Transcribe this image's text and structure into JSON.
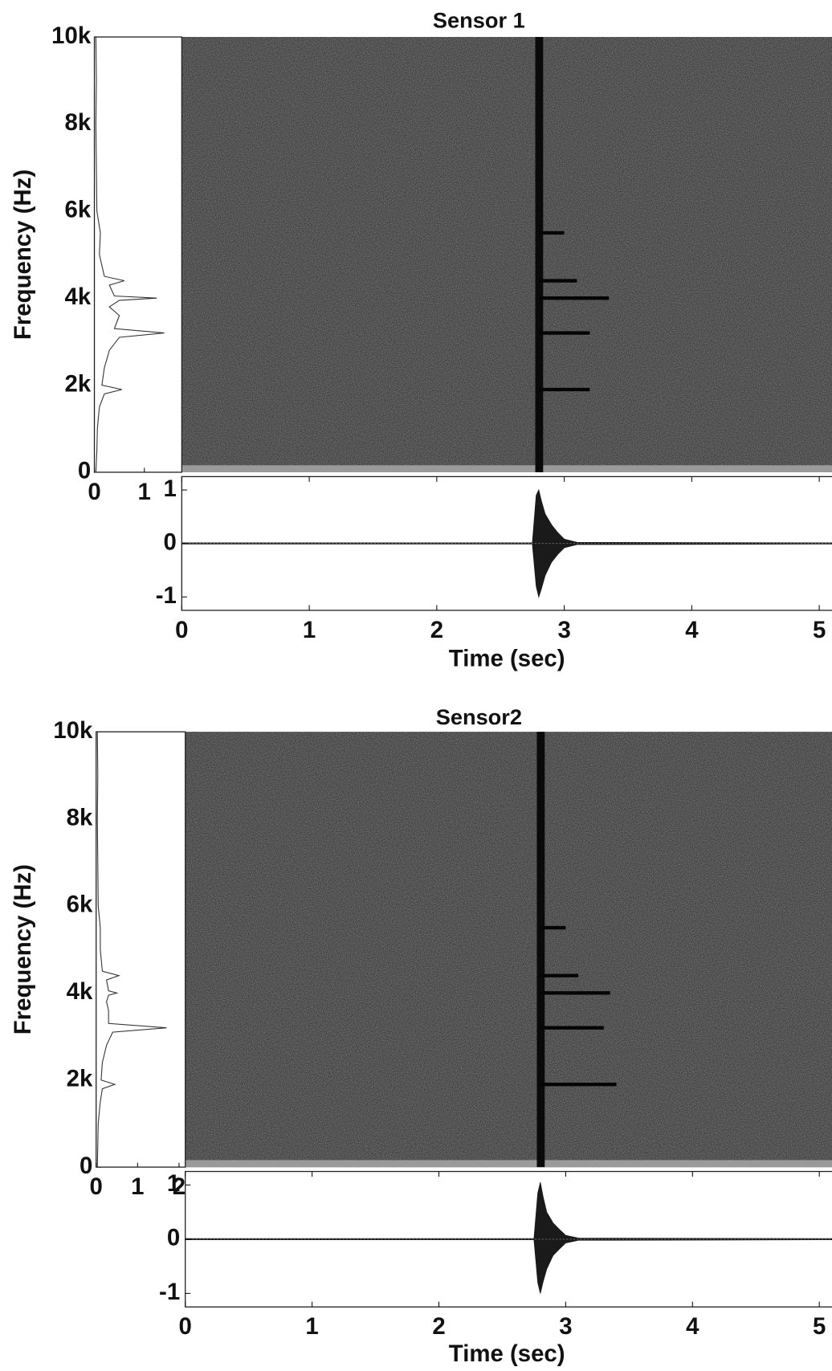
{
  "chart_data": [
    {
      "type": "spectrogram",
      "title": "Sensor 1",
      "ylabel": "Frequency (Hz)",
      "xlim": [
        0,
        5.1
      ],
      "ylim": [
        0,
        10000
      ],
      "yticks": [
        {
          "value": 10000,
          "label": "10k"
        },
        {
          "value": 8000,
          "label": "8k"
        },
        {
          "value": 6000,
          "label": "6k"
        },
        {
          "value": 4000,
          "label": "4k"
        },
        {
          "value": 2000,
          "label": "2k"
        },
        0
      ],
      "onset": 2.8,
      "harmonics": [
        {
          "frequency": 1900,
          "end": 3.2
        },
        {
          "frequency": 3200,
          "end": 3.2
        },
        {
          "frequency": 4000,
          "end": 3.35
        },
        {
          "frequency": 4400,
          "end": 3.1
        },
        {
          "frequency": 5500,
          "end": 3.0
        }
      ]
    },
    {
      "type": "spectrum",
      "xlim": [
        0,
        1.75
      ],
      "xticks": [
        0,
        1
      ],
      "ylim": [
        0,
        10000
      ],
      "frequency": [
        0,
        500,
        1000,
        1500,
        1800,
        1900,
        2000,
        2400,
        2800,
        3100,
        3200,
        3300,
        3600,
        3800,
        3950,
        4000,
        4050,
        4300,
        4400,
        4500,
        5000,
        5500,
        6000,
        7000,
        8000,
        9000,
        10000
      ],
      "values": [
        0.03,
        0.05,
        0.06,
        0.1,
        0.2,
        0.55,
        0.15,
        0.2,
        0.3,
        0.5,
        1.4,
        0.4,
        0.5,
        0.3,
        0.5,
        1.25,
        0.4,
        0.3,
        0.6,
        0.2,
        0.1,
        0.12,
        0.05,
        0.04,
        0.03,
        0.04,
        0.03
      ]
    },
    {
      "type": "waveform",
      "xlabel": "Time (sec)",
      "xlim": [
        0,
        5.1
      ],
      "xticks": [
        0,
        1,
        2,
        3,
        4,
        5
      ],
      "ylim": [
        -1.25,
        1.25
      ],
      "yticks": [
        1,
        0,
        -1
      ],
      "x": [
        0,
        2.75,
        2.78,
        2.8,
        2.82,
        2.85,
        2.9,
        2.95,
        3.0,
        3.1,
        5.1
      ],
      "upper": [
        0.01,
        0.01,
        0.9,
        1.0,
        0.8,
        0.55,
        0.35,
        0.2,
        0.08,
        0.02,
        0.01
      ],
      "lower": [
        -0.01,
        -0.01,
        -0.8,
        -1.0,
        -0.85,
        -0.6,
        -0.35,
        -0.2,
        -0.08,
        -0.02,
        -0.01
      ]
    },
    {
      "type": "spectrogram",
      "title": "Sensor2",
      "ylabel": "Frequency (Hz)",
      "xlim": [
        0,
        5.1
      ],
      "ylim": [
        0,
        10000
      ],
      "yticks": [
        {
          "value": 10000,
          "label": "10k"
        },
        {
          "value": 8000,
          "label": "8k"
        },
        {
          "value": 6000,
          "label": "6k"
        },
        {
          "value": 4000,
          "label": "4k"
        },
        {
          "value": 2000,
          "label": "2k"
        },
        0
      ],
      "onset": 2.8,
      "harmonics": [
        {
          "frequency": 1900,
          "end": 3.4
        },
        {
          "frequency": 3200,
          "end": 3.3
        },
        {
          "frequency": 4000,
          "end": 3.35
        },
        {
          "frequency": 4400,
          "end": 3.1
        },
        {
          "frequency": 5500,
          "end": 3.0
        }
      ]
    },
    {
      "type": "spectrum",
      "xlim": [
        0,
        2.15
      ],
      "xticks": [
        0,
        1,
        2
      ],
      "ylim": [
        0,
        10000
      ],
      "frequency": [
        0,
        500,
        1000,
        1500,
        1800,
        1900,
        2000,
        2400,
        2800,
        3100,
        3200,
        3300,
        3600,
        3800,
        3950,
        4000,
        4050,
        4300,
        4400,
        4500,
        5000,
        5500,
        6000,
        7000,
        8000,
        9000,
        10000
      ],
      "values": [
        0.03,
        0.04,
        0.05,
        0.1,
        0.15,
        0.45,
        0.12,
        0.15,
        0.25,
        0.4,
        1.7,
        0.3,
        0.3,
        0.25,
        0.3,
        0.5,
        0.3,
        0.25,
        0.55,
        0.15,
        0.1,
        0.1,
        0.05,
        0.04,
        0.03,
        0.04,
        0.03
      ]
    },
    {
      "type": "waveform",
      "xlabel": "Time (sec)",
      "xlim": [
        0,
        5.1
      ],
      "xticks": [
        0,
        1,
        2,
        3,
        4,
        5
      ],
      "ylim": [
        -1.25,
        1.25
      ],
      "yticks": [
        1,
        0,
        -1
      ],
      "x": [
        0,
        2.75,
        2.78,
        2.8,
        2.82,
        2.85,
        2.9,
        2.95,
        3.0,
        3.1,
        5.1
      ],
      "upper": [
        0.01,
        0.01,
        0.85,
        1.05,
        0.8,
        0.5,
        0.3,
        0.18,
        0.07,
        0.02,
        0.01
      ],
      "lower": [
        -0.01,
        -0.01,
        -0.8,
        -1.0,
        -0.8,
        -0.55,
        -0.3,
        -0.18,
        -0.07,
        -0.02,
        -0.01
      ]
    }
  ]
}
